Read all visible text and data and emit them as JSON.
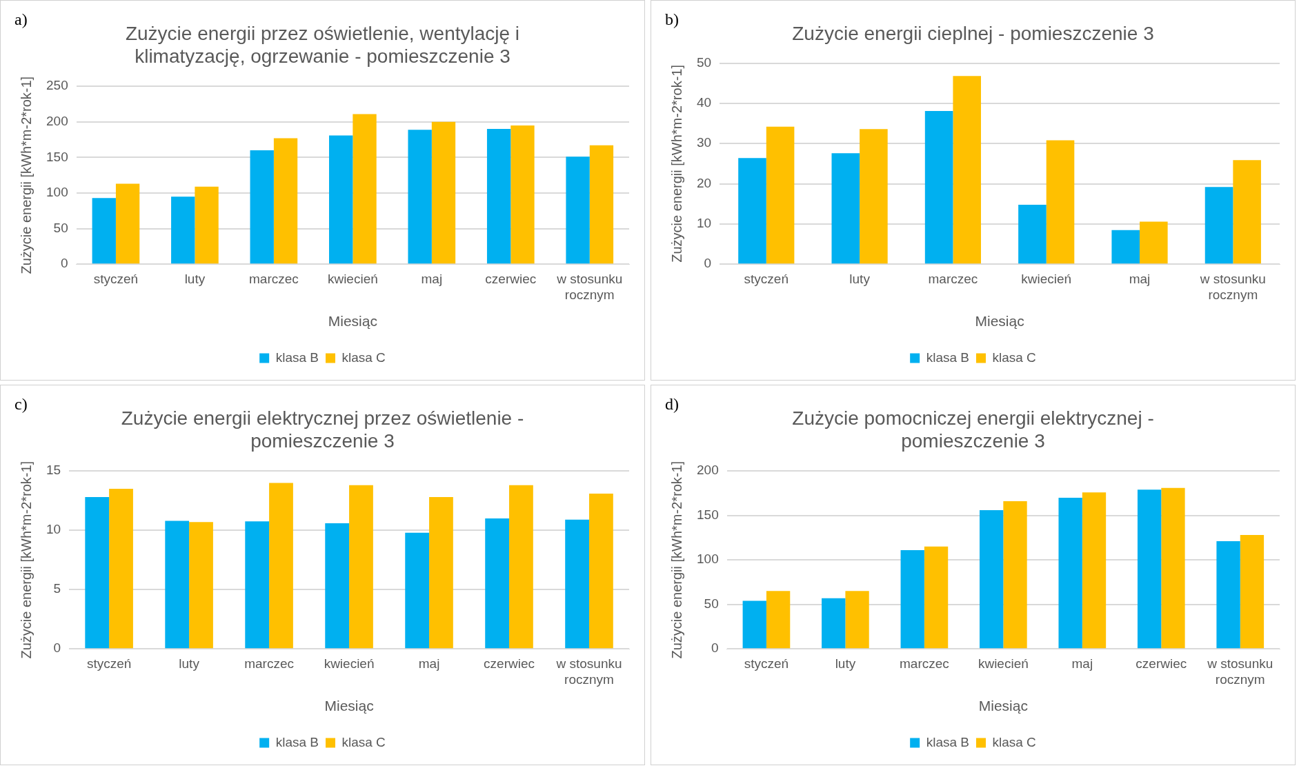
{
  "chart_data": [
    {
      "type": "bar",
      "title": "Zużycie energii przez oświetlenie, wentylację i klimatyzację, ogrzewanie - pomieszczenie 3",
      "xlabel": "Miesiąc",
      "ylabel": "Zużycie energii [kWh*m-2*rok-1]",
      "annotations": [
        "a)"
      ],
      "categories": [
        "styczeń",
        "luty",
        "marczec",
        "kwiecień",
        "maj",
        "czerwiec",
        "w stosunku rocznym"
      ],
      "series": [
        {
          "name": "klasa B",
          "color": "#00b0f0",
          "values": [
            93,
            95,
            160,
            181,
            189,
            190,
            151
          ]
        },
        {
          "name": "klasa C",
          "color": "#ffc000",
          "values": [
            113,
            109,
            177,
            211,
            200,
            195,
            167
          ]
        }
      ],
      "ylim": [
        0,
        250
      ],
      "yticks": [
        0,
        50,
        100,
        150,
        200,
        250
      ],
      "grid": "y",
      "legend": "bottom"
    },
    {
      "type": "bar",
      "title": "Zużycie energii cieplnej - pomieszczenie 3",
      "xlabel": "Miesiąc",
      "ylabel": "Zużycie energii [kWh*m-2*rok-1]",
      "annotations": [
        "b)"
      ],
      "categories": [
        "styczeń",
        "luty",
        "marczec",
        "kwiecień",
        "maj",
        "w stosunku rocznym"
      ],
      "series": [
        {
          "name": "klasa B",
          "color": "#00b0f0",
          "values": [
            26.4,
            27.6,
            38.1,
            14.8,
            8.5,
            19.2
          ]
        },
        {
          "name": "klasa C",
          "color": "#ffc000",
          "values": [
            34.2,
            33.6,
            46.8,
            30.8,
            10.6,
            25.9
          ]
        }
      ],
      "ylim": [
        0,
        50
      ],
      "yticks": [
        0,
        10,
        20,
        30,
        40,
        50
      ],
      "grid": "y",
      "legend": "bottom"
    },
    {
      "type": "bar",
      "title": "Zużycie energii elektrycznej przez oświetlenie - pomieszczenie 3",
      "xlabel": "Miesiąc",
      "ylabel": "Zużycie energii [kWh*m-2*rok-1]",
      "annotations": [
        "c)"
      ],
      "categories": [
        "styczeń",
        "luty",
        "marczec",
        "kwiecień",
        "maj",
        "czerwiec",
        "w stosunku rocznym"
      ],
      "series": [
        {
          "name": "klasa B",
          "color": "#00b0f0",
          "values": [
            12.8,
            10.8,
            10.75,
            10.6,
            9.8,
            11.0,
            10.9
          ]
        },
        {
          "name": "klasa C",
          "color": "#ffc000",
          "values": [
            13.5,
            10.7,
            14.0,
            13.8,
            12.8,
            13.8,
            13.1
          ]
        }
      ],
      "ylim": [
        0,
        15
      ],
      "yticks": [
        0,
        5,
        10,
        15
      ],
      "grid": "y",
      "legend": "bottom"
    },
    {
      "type": "bar",
      "title": "Zużycie pomocniczej energii elektrycznej - pomieszczenie 3",
      "xlabel": "Miesiąc",
      "ylabel": "Zużycie energii [kWh*m-2*rok-1]",
      "annotations": [
        "d)"
      ],
      "categories": [
        "styczeń",
        "luty",
        "marczec",
        "kwiecień",
        "maj",
        "czerwiec",
        "w stosunku rocznym"
      ],
      "series": [
        {
          "name": "klasa B",
          "color": "#00b0f0",
          "values": [
            54,
            57,
            111,
            156,
            170,
            179,
            121
          ]
        },
        {
          "name": "klasa C",
          "color": "#ffc000",
          "values": [
            65,
            65,
            115,
            166,
            176,
            181,
            128
          ]
        }
      ],
      "ylim": [
        0,
        200
      ],
      "yticks": [
        0,
        50,
        100,
        150,
        200
      ],
      "grid": "y",
      "legend": "bottom"
    }
  ]
}
